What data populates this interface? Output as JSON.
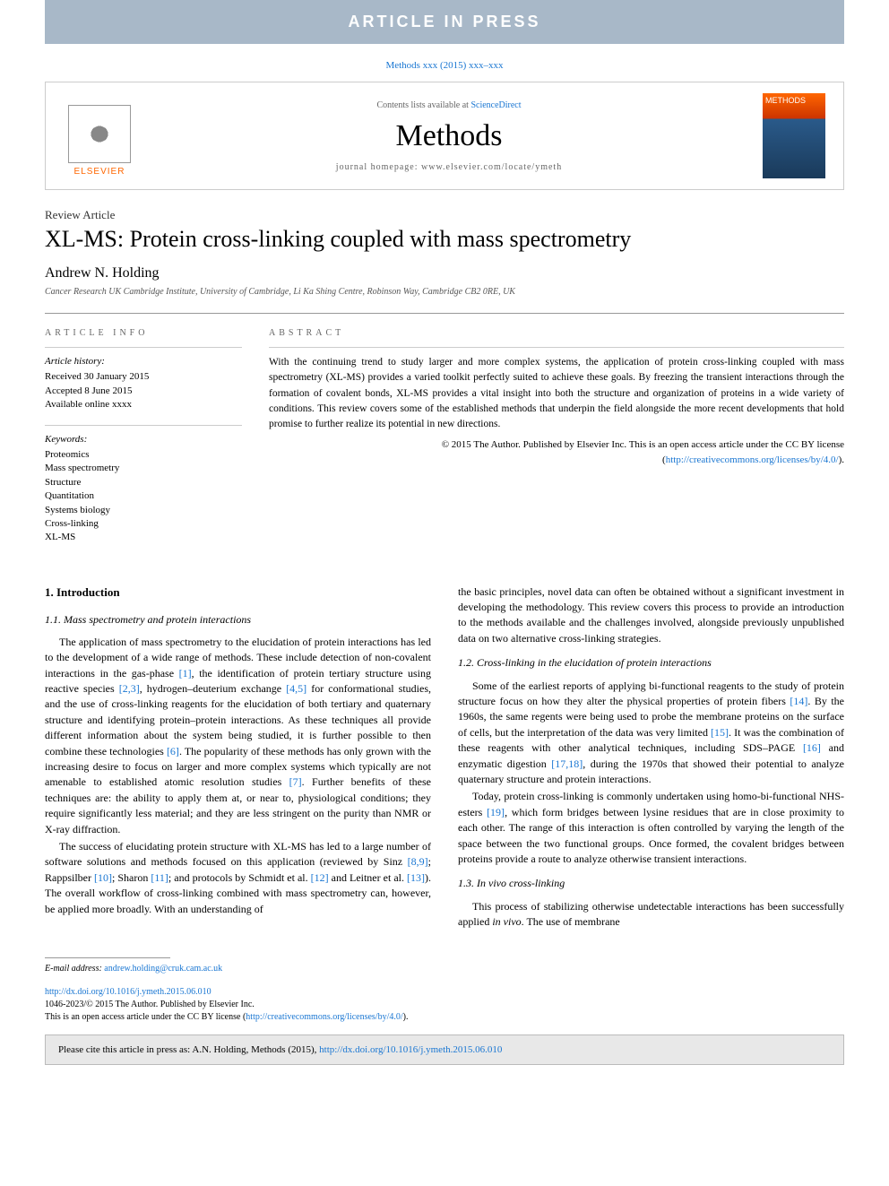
{
  "banner": "ARTICLE IN PRESS",
  "citation_top": "Methods xxx (2015) xxx–xxx",
  "header": {
    "elsevier": "ELSEVIER",
    "contents_prefix": "Contents lists available at ",
    "contents_link": "ScienceDirect",
    "journal": "Methods",
    "homepage": "journal homepage: www.elsevier.com/locate/ymeth",
    "cover_label": "METHODS"
  },
  "article": {
    "type": "Review Article",
    "title": "XL-MS: Protein cross-linking coupled with mass spectrometry",
    "author": "Andrew N. Holding",
    "affiliation": "Cancer Research UK Cambridge Institute, University of Cambridge, Li Ka Shing Centre, Robinson Way, Cambridge CB2 0RE, UK"
  },
  "info": {
    "label": "ARTICLE INFO",
    "history_label": "Article history:",
    "received": "Received 30 January 2015",
    "accepted": "Accepted 8 June 2015",
    "available": "Available online xxxx",
    "keywords_label": "Keywords:",
    "keywords": [
      "Proteomics",
      "Mass spectrometry",
      "Structure",
      "Quantitation",
      "Systems biology",
      "Cross-linking",
      "XL-MS"
    ]
  },
  "abstract": {
    "label": "ABSTRACT",
    "text": "With the continuing trend to study larger and more complex systems, the application of protein cross-linking coupled with mass spectrometry (XL-MS) provides a varied toolkit perfectly suited to achieve these goals. By freezing the transient interactions through the formation of covalent bonds, XL-MS provides a vital insight into both the structure and organization of proteins in a wide variety of conditions. This review covers some of the established methods that underpin the field alongside the more recent developments that hold promise to further realize its potential in new directions.",
    "copyright": "© 2015 The Author. Published by Elsevier Inc. This is an open access article under the CC BY license (",
    "cc_link": "http://creativecommons.org/licenses/by/4.0/",
    "cc_close": ")."
  },
  "body": {
    "h1": "1. Introduction",
    "h1_1": "1.1. Mass spectrometry and protein interactions",
    "p1a": "The application of mass spectrometry to the elucidation of protein interactions has led to the development of a wide range of methods. These include detection of non-covalent interactions in the gas-phase ",
    "r1": "[1]",
    "p1b": ", the identification of protein tertiary structure using reactive species ",
    "r23": "[2,3]",
    "p1c": ", hydrogen–deuterium exchange ",
    "r45": "[4,5]",
    "p1d": " for conformational studies, and the use of cross-linking reagents for the elucidation of both tertiary and quaternary structure and identifying protein–protein interactions. As these techniques all provide different information about the system being studied, it is further possible to then combine these technologies ",
    "r6": "[6]",
    "p1e": ". The popularity of these methods has only grown with the increasing desire to focus on larger and more complex systems which typically are not amenable to established atomic resolution studies ",
    "r7": "[7]",
    "p1f": ". Further benefits of these techniques are: the ability to apply them at, or near to, physiological conditions; they require significantly less material; and they are less stringent on the purity than NMR or X-ray diffraction.",
    "p2a": "The success of elucidating protein structure with XL-MS has led to a large number of software solutions and methods focused on this application (reviewed by Sinz ",
    "r89": "[8,9]",
    "p2b": "; Rappsilber ",
    "r10": "[10]",
    "p2c": "; Sharon ",
    "r11": "[11]",
    "p2d": "; and protocols by Schmidt et al. ",
    "r12": "[12]",
    "p2e": " and Leitner et al. ",
    "r13": "[13]",
    "p2f": "). The overall workflow of cross-linking combined with mass spectrometry can, however, be applied more broadly. With an understanding of ",
    "p3": "the basic principles, novel data can often be obtained without a significant investment in developing the methodology. This review covers this process to provide an introduction to the methods available and the challenges involved, alongside previously unpublished data on two alternative cross-linking strategies.",
    "h1_2": "1.2. Cross-linking in the elucidation of protein interactions",
    "p4a": "Some of the earliest reports of applying bi-functional reagents to the study of protein structure focus on how they alter the physical properties of protein fibers ",
    "r14": "[14]",
    "p4b": ". By the 1960s, the same regents were being used to probe the membrane proteins on the surface of cells, but the interpretation of the data was very limited ",
    "r15": "[15]",
    "p4c": ". It was the combination of these reagents with other analytical techniques, including SDS–PAGE ",
    "r16": "[16]",
    "p4d": " and enzymatic digestion ",
    "r1718": "[17,18]",
    "p4e": ", during the 1970s that showed their potential to analyze quaternary structure and protein interactions.",
    "p5a": "Today, protein cross-linking is commonly undertaken using homo-bi-functional NHS-esters ",
    "r19": "[19]",
    "p5b": ", which form bridges between lysine residues that are in close proximity to each other. The range of this interaction is often controlled by varying the length of the space between the two functional groups. Once formed, the covalent bridges between proteins provide a route to analyze otherwise transient interactions.",
    "h1_3": "1.3. In vivo cross-linking",
    "p6a": "This process of stabilizing otherwise undetectable interactions has been successfully applied ",
    "p6i": "in vivo",
    "p6b": ". The use of membrane"
  },
  "footer": {
    "email_label": "E-mail address: ",
    "email": "andrew.holding@cruk.cam.ac.uk",
    "doi": "http://dx.doi.org/10.1016/j.ymeth.2015.06.010",
    "issn": "1046-2023/© 2015 The Author. Published by Elsevier Inc.",
    "oa": "This is an open access article under the CC BY license (",
    "oa_link": "http://creativecommons.org/licenses/by/4.0/",
    "oa_close": ").",
    "cite_prefix": "Please cite this article in press as: A.N. Holding, Methods (2015), ",
    "cite_link": "http://dx.doi.org/10.1016/j.ymeth.2015.06.010"
  }
}
